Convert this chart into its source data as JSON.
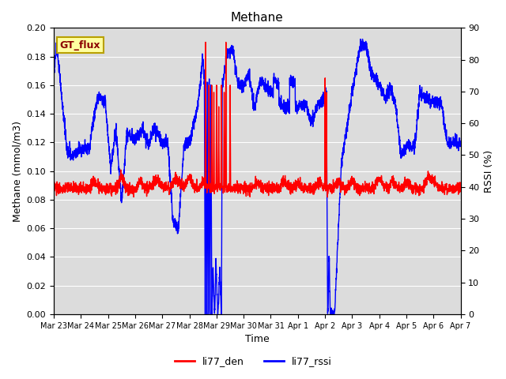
{
  "title": "Methane",
  "xlabel": "Time",
  "ylabel_left": "Methane (mmol/m3)",
  "ylabel_right": "RSSI (%)",
  "ylim_left": [
    0.0,
    0.2
  ],
  "ylim_right": [
    0,
    90
  ],
  "xtick_labels": [
    "Mar 23",
    "Mar 24",
    "Mar 25",
    "Mar 26",
    "Mar 27",
    "Mar 28",
    "Mar 29",
    "Mar 30",
    "Mar 31",
    "Apr 1",
    "Apr 2",
    "Apr 3",
    "Apr 4",
    "Apr 5",
    "Apr 6",
    "Apr 7"
  ],
  "gt_flux_label": "GT_flux",
  "legend_entries": [
    "li77_den",
    "li77_rssi"
  ],
  "legend_colors": [
    "red",
    "blue"
  ],
  "background_color": "#dcdcdc",
  "title_fontsize": 11,
  "axis_label_fontsize": 9,
  "tick_fontsize": 8,
  "line_width": 1.0,
  "gt_flux_box_color": "#ffffa0",
  "gt_flux_border_color": "#b8a000"
}
